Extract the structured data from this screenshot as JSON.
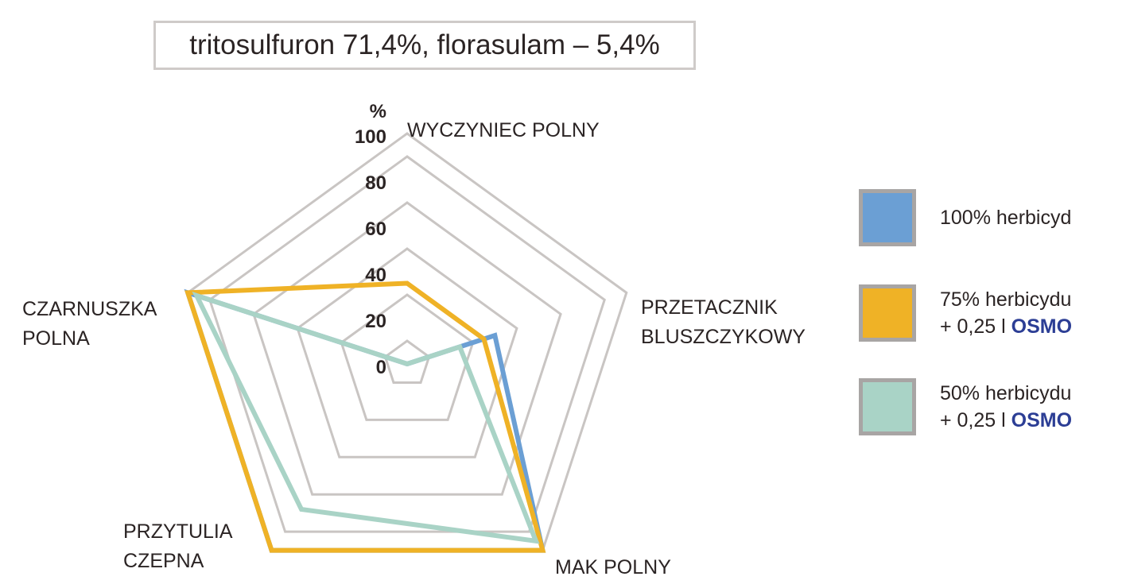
{
  "title": "tritosulfuron 71,4%, florasulam – 5,4%",
  "chart_data": {
    "type": "radar",
    "title": "tritosulfuron 71,4%, florasulam – 5,4%",
    "unit": "%",
    "rlim": [
      0,
      100
    ],
    "ticks": [
      "0",
      "20",
      "40",
      "60",
      "80",
      "100"
    ],
    "tick_values": [
      0,
      20,
      40,
      60,
      80,
      100
    ],
    "axes": [
      {
        "lines": [
          "WYCZYNIEC POLNY"
        ]
      },
      {
        "lines": [
          "PRZETACZNIK",
          "BLUSZCZYKOWY"
        ]
      },
      {
        "lines": [
          "MAK POLNY"
        ]
      },
      {
        "lines": [
          "PRZYTULIA",
          "CZEPNA"
        ]
      },
      {
        "lines": [
          "CZARNUSZKA",
          "POLNA"
        ]
      }
    ],
    "series": [
      {
        "color": "#6b9fd4",
        "values": [
          0,
          40,
          100,
          100,
          100
        ]
      },
      {
        "color": "#efb226",
        "values": [
          35,
          35,
          100,
          100,
          100
        ]
      },
      {
        "color": "#a9d3c6",
        "values": [
          0,
          24,
          95,
          78,
          96
        ]
      }
    ],
    "grid": true,
    "legend_position": "right"
  },
  "legend": [
    {
      "line1": "100% herbicyd",
      "line2_prefix": "",
      "line2_brand": "",
      "color": "#6b9fd4"
    },
    {
      "line1": "75% herbicydu",
      "line2_prefix": "+ 0,25 l ",
      "line2_brand": "OSMO",
      "color": "#efb226"
    },
    {
      "line1": "50% herbicydu",
      "line2_prefix": "+ 0,25 l ",
      "line2_brand": "OSMO",
      "color": "#a9d3c6"
    }
  ]
}
